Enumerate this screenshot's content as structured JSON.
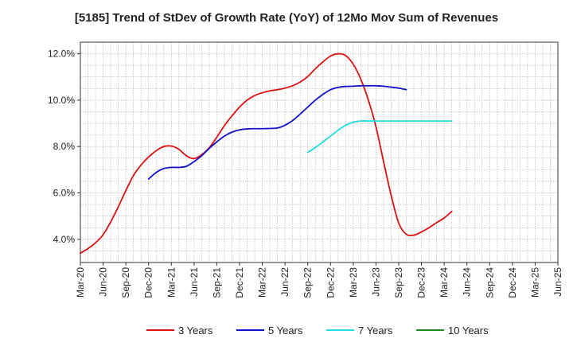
{
  "chart_data": {
    "type": "line",
    "title": "[5185]  Trend of StDev of Growth Rate (YoY) of 12Mo Mov Sum of Revenues",
    "xlabel": "",
    "ylabel": "",
    "x_ticks": [
      "Mar-20",
      "Jun-20",
      "Sep-20",
      "Dec-20",
      "Mar-21",
      "Jun-21",
      "Sep-21",
      "Dec-21",
      "Mar-22",
      "Jun-22",
      "Sep-22",
      "Dec-22",
      "Mar-23",
      "Jun-23",
      "Sep-23",
      "Dec-23",
      "Mar-24",
      "Jun-24",
      "Sep-24",
      "Dec-24",
      "Mar-25",
      "Jun-25"
    ],
    "y_ticks": [
      "4.0%",
      "6.0%",
      "8.0%",
      "10.0%",
      "12.0%"
    ],
    "y_tick_values": [
      4,
      6,
      8,
      10,
      12
    ],
    "ylim": [
      3.0,
      12.5
    ],
    "grid": true,
    "legend_position": "bottom",
    "series": [
      {
        "name": "3 Years",
        "color": "#dd1111",
        "values": [
          3.4,
          3.6,
          3.85,
          4.2,
          4.75,
          5.4,
          6.1,
          6.75,
          7.2,
          7.55,
          7.82,
          8.0,
          8.02,
          7.88,
          7.6,
          7.48,
          7.65,
          7.95,
          8.4,
          8.9,
          9.32,
          9.7,
          10.0,
          10.2,
          10.32,
          10.4,
          10.45,
          10.52,
          10.62,
          10.78,
          11.02,
          11.35,
          11.65,
          11.9,
          12.0,
          11.92,
          11.55,
          10.9,
          10.0,
          8.85,
          7.35,
          5.9,
          4.7,
          4.22,
          4.18,
          4.32,
          4.5,
          4.72,
          4.92,
          5.2
        ]
      },
      {
        "name": "5 Years",
        "color": "#1111cc",
        "values": [
          null,
          null,
          null,
          null,
          null,
          null,
          null,
          null,
          null,
          6.6,
          6.88,
          7.05,
          7.1,
          7.1,
          7.15,
          7.35,
          7.6,
          7.92,
          8.2,
          8.45,
          8.62,
          8.72,
          8.76,
          8.77,
          8.77,
          8.78,
          8.8,
          8.92,
          9.12,
          9.4,
          9.7,
          10.0,
          10.25,
          10.45,
          10.55,
          10.59,
          10.6,
          10.62,
          10.62,
          10.62,
          10.6,
          10.56,
          10.52,
          10.45
        ]
      },
      {
        "name": "7 Years",
        "color": "#22dddd",
        "values": [
          null,
          null,
          null,
          null,
          null,
          null,
          null,
          null,
          null,
          null,
          null,
          null,
          null,
          null,
          null,
          null,
          null,
          null,
          null,
          null,
          null,
          null,
          null,
          null,
          null,
          null,
          null,
          null,
          null,
          null,
          7.75,
          7.95,
          8.2,
          8.45,
          8.7,
          8.92,
          9.05,
          9.1,
          9.1,
          9.1,
          9.1,
          9.1,
          9.1,
          9.1,
          9.1,
          9.1,
          9.1,
          9.1,
          9.1,
          9.1
        ]
      },
      {
        "name": "10 Years",
        "color": "#228822",
        "values": []
      }
    ]
  }
}
